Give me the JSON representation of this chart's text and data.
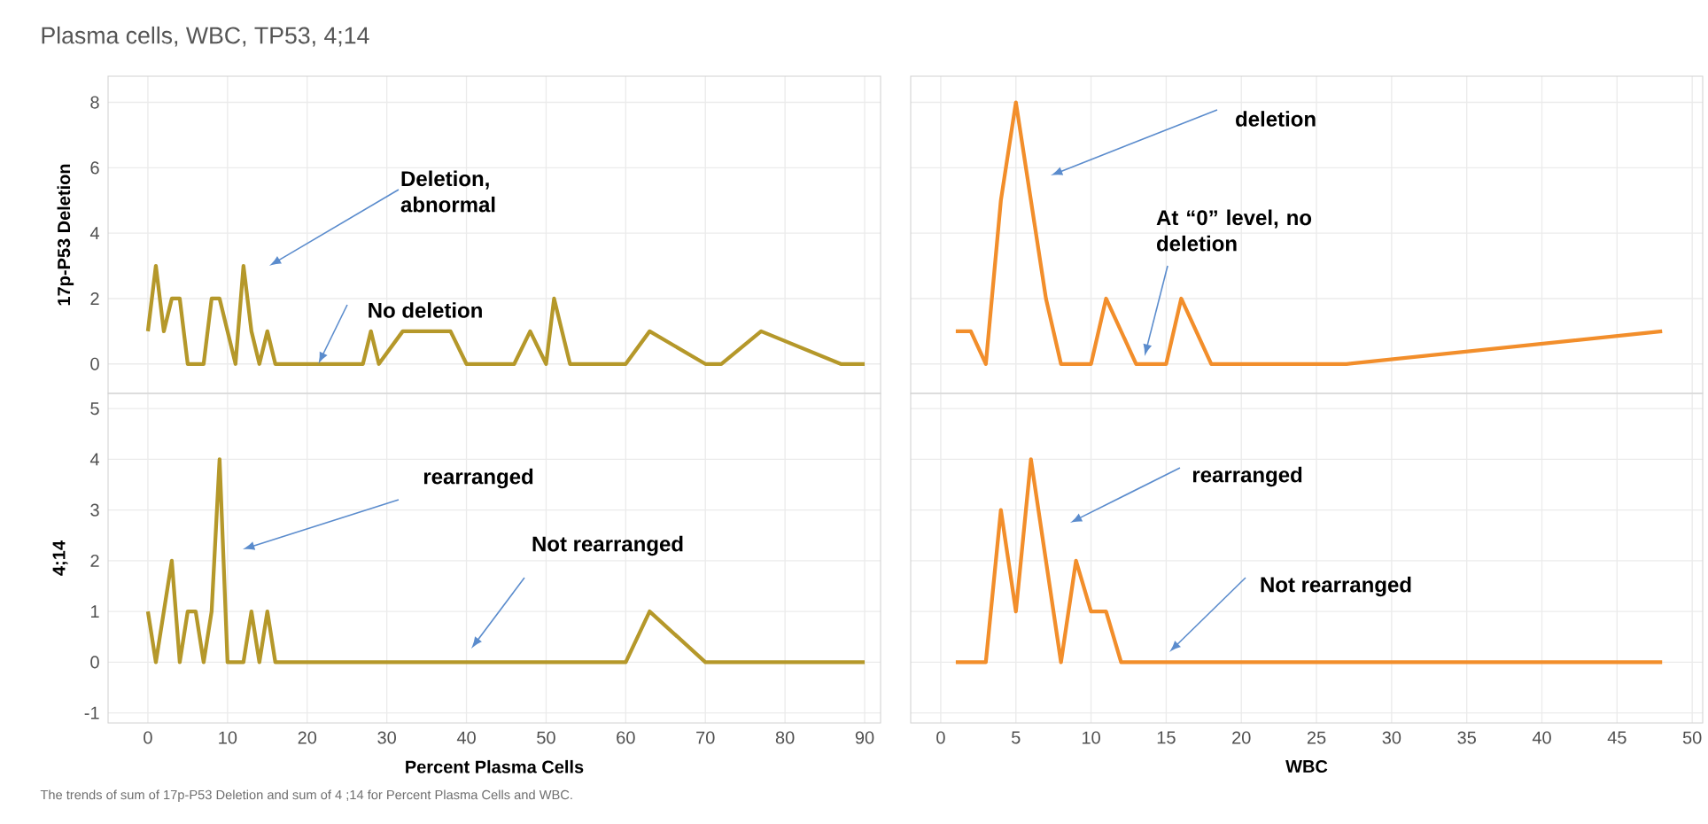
{
  "chart_data": [
    {
      "type": "line",
      "title": "Plasma cells, WBC, TP53, 4;14",
      "ylabel": "17p-P53 Deletion",
      "xlim": [
        -5,
        92
      ],
      "xticks": [
        0,
        10,
        20,
        30,
        40,
        50,
        60,
        70,
        80,
        90
      ],
      "ylim": [
        -0.9,
        8.8
      ],
      "yticks": [
        0,
        2,
        4,
        6,
        8
      ],
      "grid": true,
      "tick_labels": "y",
      "x": [
        0,
        1,
        2,
        3,
        4,
        5,
        7,
        8,
        9,
        11,
        12,
        13,
        14,
        15,
        16,
        27,
        28,
        29,
        32,
        38,
        40,
        46,
        48,
        50,
        51,
        53,
        60,
        63,
        70,
        72,
        77,
        87,
        90
      ],
      "series": [
        {
          "color": "#b5982a",
          "values": [
            1,
            3,
            1,
            2,
            2,
            0,
            0,
            2,
            2,
            0,
            3,
            1,
            0,
            1,
            0,
            0,
            1,
            0,
            1,
            1,
            0,
            0,
            1,
            0,
            2,
            0,
            0,
            1,
            0,
            0,
            1,
            0,
            0
          ]
        }
      ],
      "annotations": [
        "Deletion, abnormal",
        {
          "text": "No deletion",
          "x": 21.4,
          "y": 0
        }
      ]
    },
    {
      "type": "line",
      "xlim": [
        -2,
        50.7
      ],
      "xticks": [
        0,
        5,
        10,
        15,
        20,
        25,
        30,
        35,
        40,
        45,
        50
      ],
      "ylim": [
        -0.9,
        8.8
      ],
      "yticks": [
        0,
        2,
        4,
        6,
        8
      ],
      "grid": true,
      "tick_labels": false,
      "x": [
        1,
        2,
        3,
        4,
        5,
        7,
        8,
        10,
        11,
        13,
        15,
        16,
        18,
        27,
        48
      ],
      "series": [
        {
          "color": "#f28e2b",
          "values": [
            1,
            1,
            0,
            5,
            8,
            2,
            0,
            0,
            2,
            0,
            0,
            2,
            0,
            0,
            1
          ]
        }
      ],
      "annotations": [
        "deletion",
        "At “0”  level, no deletion"
      ]
    },
    {
      "type": "line",
      "xlabel": "Percent Plasma Cells",
      "ylabel": "4;14",
      "xlim": [
        -5,
        92
      ],
      "xticks": [
        0,
        10,
        20,
        30,
        40,
        50,
        60,
        70,
        80,
        90
      ],
      "ylim": [
        -1.2,
        5.3
      ],
      "yticks": [
        -1,
        0,
        1,
        2,
        3,
        4,
        5
      ],
      "grid": true,
      "x": [
        0,
        1,
        3,
        4,
        5,
        6,
        7,
        8,
        9,
        10,
        12,
        13,
        14,
        15,
        16,
        60,
        63,
        70,
        90
      ],
      "series": [
        {
          "color": "#b5982a",
          "values": [
            1,
            0,
            2,
            0,
            1,
            1,
            0,
            1,
            4,
            0,
            0,
            1,
            0,
            1,
            0,
            0,
            1,
            0,
            0
          ]
        }
      ],
      "annotations": [
        "rearranged",
        "Not rearranged",
        "The trends of sum of 17p-P53 Deletion and sum of 4 ;14 for Percent Plasma Cells and WBC."
      ]
    },
    {
      "type": "line",
      "xlabel": "WBC",
      "xlim": [
        -2,
        50.7
      ],
      "xticks": [
        0,
        5,
        10,
        15,
        20,
        25,
        30,
        35,
        40,
        45,
        50
      ],
      "ylim": [
        -1.2,
        5.3
      ],
      "yticks": [
        -1,
        0,
        1,
        2,
        3,
        4,
        5
      ],
      "grid": true,
      "tick_labels": "x",
      "x": [
        1,
        3,
        4,
        5,
        6,
        8,
        9,
        10,
        11,
        12,
        48
      ],
      "series": [
        {
          "color": "#f28e2b",
          "values": [
            0,
            0,
            3,
            1,
            4,
            0,
            2,
            1,
            1,
            0,
            0
          ]
        }
      ],
      "annotations": [
        "rearranged",
        "Not rearranged"
      ]
    }
  ]
}
